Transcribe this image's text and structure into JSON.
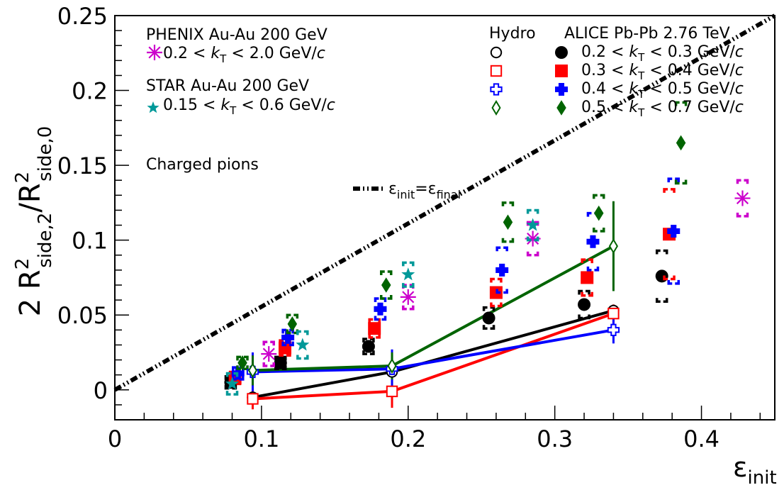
{
  "chart_data": {
    "type": "scatter",
    "xlabel_base": "ε",
    "xlabel_sub": "init",
    "ylabel_parts": {
      "coef": "2 R",
      "sup1": "2",
      "sub1": "side,2",
      "slash": "/R",
      "sup2": "2",
      "sub2": "side,0"
    },
    "xlim": [
      0,
      0.45
    ],
    "ylim": [
      -0.02,
      0.25
    ],
    "x_ticks": [
      {
        "value": 0,
        "label": "0"
      },
      {
        "value": 0.1,
        "label": "0.1"
      },
      {
        "value": 0.2,
        "label": "0.2"
      },
      {
        "value": 0.3,
        "label": "0.3"
      },
      {
        "value": 0.4,
        "label": "0.4"
      }
    ],
    "y_ticks": [
      {
        "value": 0,
        "label": "0"
      },
      {
        "value": 0.05,
        "label": "0.05"
      },
      {
        "value": 0.1,
        "label": "0.1"
      },
      {
        "value": 0.15,
        "label": "0.15"
      },
      {
        "value": 0.2,
        "label": "0.2"
      },
      {
        "value": 0.25,
        "label": "0.25"
      }
    ],
    "reference_line": {
      "x": [
        0,
        0.45
      ],
      "y": [
        0,
        0.25
      ],
      "label_base_1": "ε",
      "label_sub_1": "init",
      "label_eq": "=",
      "label_base_2": "ε",
      "label_sub_2": "final"
    },
    "annotation": "Charged pions",
    "alice": {
      "title": "ALICE Pb-Pb 2.76 TeV",
      "series": [
        {
          "name_pre": "0.2 < ",
          "name_post": " < 0.3 GeV/",
          "marker": "circle",
          "color": "#000000",
          "points": [
            {
              "x": 0.079,
              "y": 0.005,
              "sys": 0.004
            },
            {
              "x": 0.113,
              "y": 0.018,
              "sys": 0.004
            },
            {
              "x": 0.173,
              "y": 0.029,
              "sys": 0.005
            },
            {
              "x": 0.255,
              "y": 0.048,
              "sys": 0.007
            },
            {
              "x": 0.32,
              "y": 0.057,
              "sys": 0.009
            },
            {
              "x": 0.373,
              "y": 0.076,
              "sys": 0.017
            }
          ]
        },
        {
          "name_pre": "0.3 < ",
          "name_post": " < 0.4 GeV/",
          "marker": "square",
          "color": "#ff0000",
          "points": [
            {
              "x": 0.082,
              "y": 0.008,
              "sys": 0.004
            },
            {
              "x": 0.116,
              "y": 0.028,
              "sys": 0.005
            },
            {
              "x": 0.177,
              "y": 0.041,
              "sys": 0.006
            },
            {
              "x": 0.26,
              "y": 0.065,
              "sys": 0.009
            },
            {
              "x": 0.322,
              "y": 0.075,
              "sys": 0.012
            },
            {
              "x": 0.378,
              "y": 0.104,
              "sys": 0.03
            }
          ]
        },
        {
          "name_pre": "0.4 < ",
          "name_post": " < 0.5 GeV/",
          "marker": "cross",
          "color": "#0000ff",
          "points": [
            {
              "x": 0.084,
              "y": 0.011,
              "sys": 0.004
            },
            {
              "x": 0.118,
              "y": 0.035,
              "sys": 0.005
            },
            {
              "x": 0.181,
              "y": 0.054,
              "sys": 0.007
            },
            {
              "x": 0.264,
              "y": 0.08,
              "sys": 0.015
            },
            {
              "x": 0.326,
              "y": 0.099,
              "sys": 0.019
            },
            {
              "x": 0.381,
              "y": 0.106,
              "sys": 0.035
            }
          ]
        },
        {
          "name_pre": "0.5 < ",
          "name_post": " < 0.7 GeV/",
          "marker": "diamond",
          "color": "#006400",
          "points": [
            {
              "x": 0.087,
              "y": 0.018,
              "sys": 0.004
            },
            {
              "x": 0.121,
              "y": 0.044,
              "sys": 0.006
            },
            {
              "x": 0.185,
              "y": 0.07,
              "sys": 0.009
            },
            {
              "x": 0.268,
              "y": 0.112,
              "sys": 0.013
            },
            {
              "x": 0.33,
              "y": 0.118,
              "sys": 0.012
            },
            {
              "x": 0.386,
              "y": 0.165,
              "sys": 0.027
            }
          ]
        }
      ],
      "kT_label_base": "k",
      "kT_label_sub": "T",
      "unit_c": "c"
    },
    "phenix": {
      "title": "PHENIX Au-Au 200 GeV",
      "series": [
        {
          "name_pre": "0.2 < ",
          "name_post": " < 2.0 GeV/",
          "marker": "asterisk",
          "color": "#cc00cc",
          "points": [
            {
              "x": 0.105,
              "y": 0.024,
              "sys": 0.008
            },
            {
              "x": 0.2,
              "y": 0.062,
              "sys": 0.008
            },
            {
              "x": 0.285,
              "y": 0.101,
              "sys": 0.011
            },
            {
              "x": 0.428,
              "y": 0.128,
              "sys": 0.012
            }
          ]
        }
      ]
    },
    "star": {
      "title": "STAR Au-Au 200 GeV",
      "series": [
        {
          "name_pre": "0.15 < ",
          "name_post": " < 0.6 GeV/",
          "marker": "star",
          "color": "#009999",
          "points": [
            {
              "x": 0.08,
              "y": 0.004,
              "sys": 0.007
            },
            {
              "x": 0.128,
              "y": 0.03,
              "sys": 0.009
            },
            {
              "x": 0.2,
              "y": 0.077,
              "sys": 0.008
            },
            {
              "x": 0.285,
              "y": 0.11,
              "sys": 0.01
            }
          ]
        }
      ]
    },
    "hydro": {
      "title": "Hydro",
      "series": [
        {
          "marker": "open-circle",
          "color": "#000000",
          "points": [
            {
              "x": 0.094,
              "y": -0.005,
              "err": 0
            },
            {
              "x": 0.189,
              "y": 0.012,
              "err": 0.012
            },
            {
              "x": 0.34,
              "y": 0.053,
              "err": 0.004
            }
          ]
        },
        {
          "marker": "open-square",
          "color": "#ff0000",
          "points": [
            {
              "x": 0.094,
              "y": -0.006,
              "err": 0.007
            },
            {
              "x": 0.189,
              "y": -0.001,
              "err": 0.011
            },
            {
              "x": 0.34,
              "y": 0.051,
              "err": 0.006
            }
          ]
        },
        {
          "marker": "open-cross",
          "color": "#0000ff",
          "points": [
            {
              "x": 0.094,
              "y": 0.012,
              "err": 0.013
            },
            {
              "x": 0.189,
              "y": 0.014,
              "err": 0.013
            },
            {
              "x": 0.34,
              "y": 0.04,
              "err": 0.009
            }
          ]
        },
        {
          "marker": "open-diamond",
          "color": "#006400",
          "points": [
            {
              "x": 0.094,
              "y": 0.013,
              "err": 0.01
            },
            {
              "x": 0.189,
              "y": 0.016,
              "err": 0.009
            },
            {
              "x": 0.34,
              "y": 0.096,
              "err": 0.03
            }
          ]
        }
      ]
    }
  }
}
